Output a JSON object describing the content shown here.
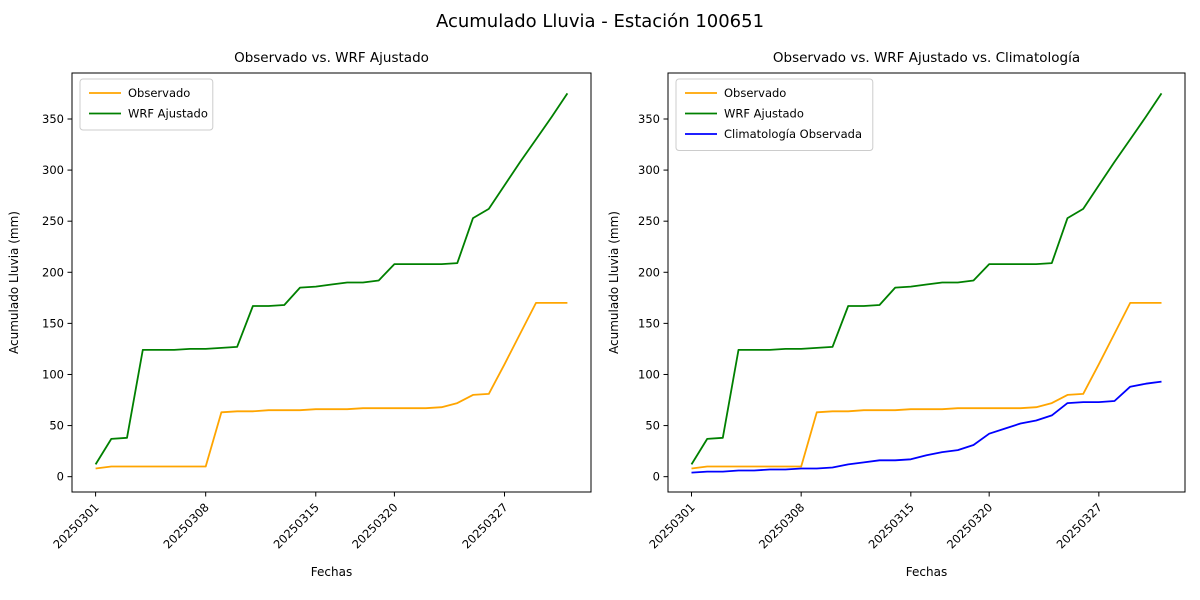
{
  "figure": {
    "suptitle": "Acumulado Lluvia - Estación 100651",
    "background": "#ffffff",
    "text_color": "#000000"
  },
  "chart_data": [
    {
      "type": "line",
      "title": "Observado vs. WRF Ajustado",
      "xlabel": "Fechas",
      "ylabel": "Acumulado Lluvia (mm)",
      "legend_position": "upper left",
      "grid": false,
      "ylim": [
        -15,
        395
      ],
      "yticks": [
        0,
        50,
        100,
        150,
        200,
        250,
        300,
        350
      ],
      "xticks": [
        {
          "index": 0,
          "label": "20250301"
        },
        {
          "index": 7,
          "label": "20250308"
        },
        {
          "index": 14,
          "label": "20250315"
        },
        {
          "index": 19,
          "label": "20250320"
        },
        {
          "index": 26,
          "label": "20250327"
        }
      ],
      "x": [
        "20250301",
        "20250302",
        "20250303",
        "20250304",
        "20250305",
        "20250306",
        "20250307",
        "20250308",
        "20250309",
        "20250310",
        "20250311",
        "20250312",
        "20250313",
        "20250314",
        "20250315",
        "20250316",
        "20250317",
        "20250318",
        "20250319",
        "20250320",
        "20250321",
        "20250322",
        "20250323",
        "20250324",
        "20250325",
        "20250326",
        "20250327",
        "20250328",
        "20250329",
        "20250330",
        "20250331"
      ],
      "series": [
        {
          "name": "Observado",
          "color": "#FFA500",
          "values": [
            8,
            10,
            10,
            10,
            10,
            10,
            10,
            10,
            63,
            64,
            64,
            65,
            65,
            65,
            66,
            66,
            66,
            67,
            67,
            67,
            67,
            67,
            68,
            72,
            80,
            81,
            110,
            140,
            170,
            170,
            170
          ]
        },
        {
          "name": "WRF Ajustado",
          "color": "#008000",
          "values": [
            12,
            37,
            38,
            124,
            124,
            124,
            125,
            125,
            126,
            127,
            167,
            167,
            168,
            185,
            186,
            188,
            190,
            190,
            192,
            208,
            208,
            208,
            208,
            209,
            253,
            262,
            285,
            308,
            330,
            352,
            375
          ]
        }
      ]
    },
    {
      "type": "line",
      "title": "Observado vs. WRF Ajustado vs. Climatología",
      "xlabel": "Fechas",
      "ylabel": "Acumulado Lluvia (mm)",
      "legend_position": "upper left",
      "grid": false,
      "ylim": [
        -15,
        395
      ],
      "yticks": [
        0,
        50,
        100,
        150,
        200,
        250,
        300,
        350
      ],
      "xticks": [
        {
          "index": 0,
          "label": "20250301"
        },
        {
          "index": 7,
          "label": "20250308"
        },
        {
          "index": 14,
          "label": "20250315"
        },
        {
          "index": 19,
          "label": "20250320"
        },
        {
          "index": 26,
          "label": "20250327"
        }
      ],
      "x": [
        "20250301",
        "20250302",
        "20250303",
        "20250304",
        "20250305",
        "20250306",
        "20250307",
        "20250308",
        "20250309",
        "20250310",
        "20250311",
        "20250312",
        "20250313",
        "20250314",
        "20250315",
        "20250316",
        "20250317",
        "20250318",
        "20250319",
        "20250320",
        "20250321",
        "20250322",
        "20250323",
        "20250324",
        "20250325",
        "20250326",
        "20250327",
        "20250328",
        "20250329",
        "20250330",
        "20250331"
      ],
      "series": [
        {
          "name": "Observado",
          "color": "#FFA500",
          "values": [
            8,
            10,
            10,
            10,
            10,
            10,
            10,
            10,
            63,
            64,
            64,
            65,
            65,
            65,
            66,
            66,
            66,
            67,
            67,
            67,
            67,
            67,
            68,
            72,
            80,
            81,
            110,
            140,
            170,
            170,
            170
          ]
        },
        {
          "name": "WRF Ajustado",
          "color": "#008000",
          "values": [
            12,
            37,
            38,
            124,
            124,
            124,
            125,
            125,
            126,
            127,
            167,
            167,
            168,
            185,
            186,
            188,
            190,
            190,
            192,
            208,
            208,
            208,
            208,
            209,
            253,
            262,
            285,
            308,
            330,
            352,
            375
          ]
        },
        {
          "name": "Climatología Observada",
          "color": "#0000FF",
          "values": [
            4,
            5,
            5,
            6,
            6,
            7,
            7,
            8,
            8,
            9,
            12,
            14,
            16,
            16,
            17,
            21,
            24,
            26,
            31,
            42,
            47,
            52,
            55,
            60,
            72,
            73,
            73,
            74,
            88,
            91,
            93
          ]
        }
      ]
    }
  ]
}
